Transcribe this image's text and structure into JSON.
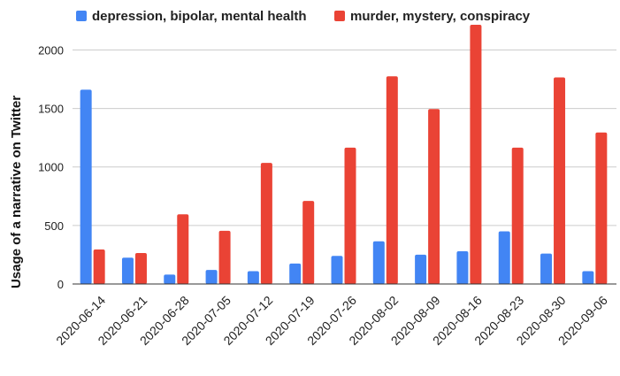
{
  "chart_data": {
    "type": "bar",
    "title": "",
    "xlabel": "",
    "ylabel": "Usage of a narrative on Twitter",
    "ylim": [
      0,
      2200
    ],
    "yticks": [
      0,
      500,
      1000,
      1500,
      2000
    ],
    "grid": true,
    "legend_position": "top",
    "categories": [
      "2020-06-14",
      "2020-06-21",
      "2020-06-28",
      "2020-07-05",
      "2020-07-12",
      "2020-07-19",
      "2020-07-26",
      "2020-08-02",
      "2020-08-09",
      "2020-08-16",
      "2020-08-23",
      "2020-08-30",
      "2020-09-06"
    ],
    "series": [
      {
        "name": "depression, bipolar, mental health",
        "color": "#4285f4",
        "values": [
          1660,
          225,
          80,
          120,
          110,
          175,
          240,
          365,
          250,
          280,
          450,
          260,
          110
        ]
      },
      {
        "name": "murder, mystery, conspiracy",
        "color": "#ea4335",
        "values": [
          295,
          265,
          595,
          455,
          1035,
          710,
          1165,
          1775,
          1495,
          2215,
          1165,
          1765,
          1295
        ]
      }
    ]
  }
}
